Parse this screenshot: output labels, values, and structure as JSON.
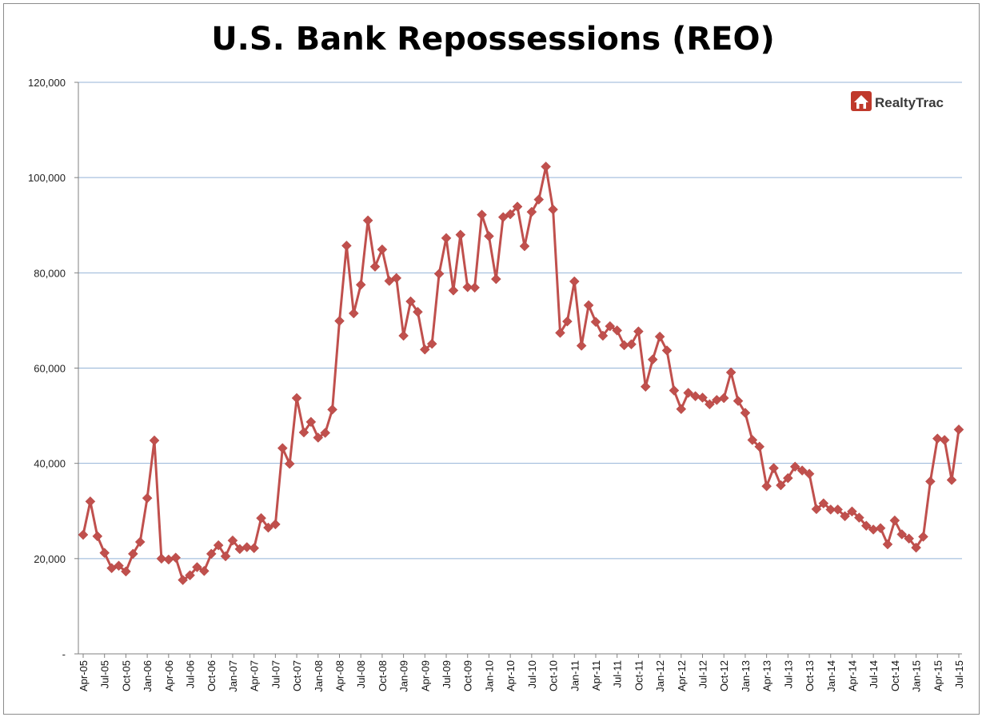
{
  "chart_data": {
    "type": "line",
    "title": "U.S. Bank Repossessions (REO)",
    "xlabel": "",
    "ylabel": "",
    "ylim": [
      0,
      120000
    ],
    "y_ticks": [
      0,
      20000,
      40000,
      60000,
      80000,
      100000,
      120000
    ],
    "y_tick_labels": [
      "-",
      "20,000",
      "40,000",
      "60,000",
      "80,000",
      "100,000",
      "120,000"
    ],
    "x_tick_labels": [
      "Apr-05",
      "Jul-05",
      "Oct-05",
      "Jan-06",
      "Apr-06",
      "Jul-06",
      "Oct-06",
      "Jan-07",
      "Apr-07",
      "Jul-07",
      "Oct-07",
      "Jan-08",
      "Apr-08",
      "Jul-08",
      "Oct-08",
      "Jan-09",
      "Apr-09",
      "Jul-09",
      "Oct-09",
      "Jan-10",
      "Apr-10",
      "Jul-10",
      "Oct-10",
      "Jan-11",
      "Apr-11",
      "Jul-11",
      "Oct-11",
      "Jan-12",
      "Apr-12",
      "Jul-12",
      "Oct-12",
      "Jan-13",
      "Apr-13",
      "Jul-13",
      "Oct-13",
      "Jan-14",
      "Apr-14",
      "Jul-14",
      "Oct-14",
      "Jan-15",
      "Apr-15",
      "Jul-15"
    ],
    "grid": "horizontal",
    "color": "#C0504D",
    "marker": "diamond",
    "series": [
      {
        "values": [
          25000,
          32000,
          24700,
          21200,
          18000,
          18500,
          17300,
          21000,
          23500,
          32700,
          44800,
          20000,
          19800,
          20200,
          15500,
          16500,
          18200,
          17400,
          21000,
          22800,
          20500,
          23800,
          22000,
          22400,
          22200,
          28500,
          26500,
          27200,
          43200,
          39900,
          53700,
          46500,
          48700,
          45400,
          46400,
          51300,
          69900,
          85700,
          71500,
          77500,
          91000,
          81300,
          84900,
          78300,
          78900,
          66800,
          74000,
          71800,
          63900,
          65100,
          79800,
          87300,
          76300,
          88000,
          77000,
          76900,
          92200,
          87700,
          78700,
          91700,
          92300,
          93900,
          85600,
          92800,
          95400,
          102300,
          93300,
          67400,
          69800,
          78200,
          64700,
          73200,
          69700,
          66800,
          68800,
          67900,
          64800,
          65000,
          67700,
          56100,
          61800,
          66600,
          63700,
          55300,
          51400,
          54800,
          54100,
          53800,
          52400,
          53300,
          53700,
          59100,
          53100,
          50600,
          44900,
          43500,
          35200,
          39000,
          35400,
          36900,
          39300,
          38500,
          37800,
          30400,
          31600,
          30300,
          30300,
          28900,
          29900,
          28600,
          26900,
          26100,
          26400,
          23000,
          28000,
          25100,
          24200,
          22300,
          24600,
          36200,
          45200,
          44900,
          36500,
          47100
        ]
      }
    ]
  },
  "logo": {
    "text": "RealtyTrac",
    "mark": "house-icon",
    "color": "#C0392B"
  }
}
